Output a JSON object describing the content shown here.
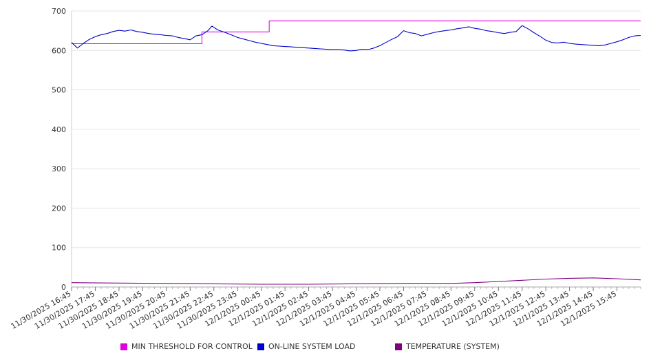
{
  "chart_data": {
    "type": "line",
    "title": "",
    "xlabel": "",
    "ylabel": "",
    "ylim": [
      0,
      700
    ],
    "yticks": [
      0,
      100,
      200,
      300,
      400,
      500,
      600,
      700
    ],
    "grid": true,
    "legend_position": "bottom",
    "x_tick_labels": [
      "11/30/2025 16:45",
      "11/30/2025 17:45",
      "11/30/2025 18:45",
      "11/30/2025 19:45",
      "11/30/2025 20:45",
      "11/30/2025 21:45",
      "11/30/2025 22:45",
      "11/30/2025 23:45",
      "12/1/2025 00:45",
      "12/1/2025 01:45",
      "12/1/2025 02:45",
      "12/1/2025 03:45",
      "12/1/2025 04:45",
      "12/1/2025 05:45",
      "12/1/2025 06:45",
      "12/1/2025 07:45",
      "12/1/2025 08:45",
      "12/1/2025 09:45",
      "12/1/2025 10:45",
      "12/1/2025 11:45",
      "12/1/2025 12:45",
      "12/1/2025 13:45",
      "12/1/2025 14:45",
      "12/1/2025 15:45"
    ],
    "x_range": [
      "11/30/2025 16:45",
      "12/1/2025 16:45"
    ],
    "series": [
      {
        "name": "MIN THRESHOLD FOR CONTROL",
        "color": "#e000e0",
        "step": true,
        "points": [
          [
            "11/30/2025 16:45",
            617
          ],
          [
            "11/30/2025 22:15",
            617
          ],
          [
            "11/30/2025 22:15",
            647
          ],
          [
            "12/1/2025 01:05",
            647
          ],
          [
            "12/1/2025 01:05",
            675
          ],
          [
            "12/1/2025 16:45",
            675
          ]
        ]
      },
      {
        "name": "ON-LINE SYSTEM LOAD",
        "color": "#0000cc",
        "step": false,
        "points": [
          [
            "11/30/2025 16:45",
            620
          ],
          [
            "11/30/2025 17:00",
            606
          ],
          [
            "11/30/2025 17:15",
            618
          ],
          [
            "11/30/2025 17:30",
            628
          ],
          [
            "11/30/2025 17:45",
            635
          ],
          [
            "11/30/2025 18:00",
            640
          ],
          [
            "11/30/2025 18:15",
            643
          ],
          [
            "11/30/2025 18:30",
            648
          ],
          [
            "11/30/2025 18:45",
            651
          ],
          [
            "11/30/2025 19:00",
            649
          ],
          [
            "11/30/2025 19:15",
            652
          ],
          [
            "11/30/2025 19:30",
            648
          ],
          [
            "11/30/2025 19:45",
            646
          ],
          [
            "11/30/2025 20:00",
            643
          ],
          [
            "11/30/2025 20:15",
            641
          ],
          [
            "11/30/2025 20:30",
            640
          ],
          [
            "11/30/2025 20:45",
            638
          ],
          [
            "11/30/2025 21:00",
            637
          ],
          [
            "11/30/2025 21:15",
            633
          ],
          [
            "11/30/2025 21:30",
            630
          ],
          [
            "11/30/2025 21:45",
            627
          ],
          [
            "11/30/2025 22:00",
            637
          ],
          [
            "11/30/2025 22:15",
            640
          ],
          [
            "11/30/2025 22:30",
            650
          ],
          [
            "11/30/2025 22:40",
            662
          ],
          [
            "11/30/2025 22:55",
            652
          ],
          [
            "11/30/2025 23:15",
            645
          ],
          [
            "11/30/2025 23:30",
            639
          ],
          [
            "11/30/2025 23:45",
            633
          ],
          [
            "12/1/2025 00:00",
            629
          ],
          [
            "12/1/2025 00:15",
            625
          ],
          [
            "12/1/2025 00:30",
            621
          ],
          [
            "12/1/2025 00:45",
            618
          ],
          [
            "12/1/2025 01:00",
            615
          ],
          [
            "12/1/2025 01:15",
            612
          ],
          [
            "12/1/2025 01:30",
            611
          ],
          [
            "12/1/2025 01:45",
            610
          ],
          [
            "12/1/2025 02:00",
            609
          ],
          [
            "12/1/2025 02:15",
            608
          ],
          [
            "12/1/2025 02:30",
            607
          ],
          [
            "12/1/2025 02:45",
            606
          ],
          [
            "12/1/2025 03:00",
            605
          ],
          [
            "12/1/2025 03:15",
            604
          ],
          [
            "12/1/2025 03:30",
            603
          ],
          [
            "12/1/2025 03:45",
            602
          ],
          [
            "12/1/2025 04:00",
            602
          ],
          [
            "12/1/2025 04:15",
            601
          ],
          [
            "12/1/2025 04:30",
            599
          ],
          [
            "12/1/2025 04:45",
            600
          ],
          [
            "12/1/2025 05:00",
            603
          ],
          [
            "12/1/2025 05:15",
            602
          ],
          [
            "12/1/2025 05:30",
            606
          ],
          [
            "12/1/2025 05:45",
            612
          ],
          [
            "12/1/2025 06:00",
            620
          ],
          [
            "12/1/2025 06:15",
            628
          ],
          [
            "12/1/2025 06:30",
            635
          ],
          [
            "12/1/2025 06:45",
            650
          ],
          [
            "12/1/2025 07:00",
            645
          ],
          [
            "12/1/2025 07:15",
            643
          ],
          [
            "12/1/2025 07:30",
            637
          ],
          [
            "12/1/2025 07:45",
            641
          ],
          [
            "12/1/2025 08:00",
            645
          ],
          [
            "12/1/2025 08:15",
            648
          ],
          [
            "12/1/2025 08:30",
            650
          ],
          [
            "12/1/2025 08:45",
            652
          ],
          [
            "12/1/2025 09:00",
            655
          ],
          [
            "12/1/2025 09:15",
            657
          ],
          [
            "12/1/2025 09:30",
            660
          ],
          [
            "12/1/2025 09:45",
            656
          ],
          [
            "12/1/2025 10:00",
            654
          ],
          [
            "12/1/2025 10:15",
            650
          ],
          [
            "12/1/2025 10:30",
            648
          ],
          [
            "12/1/2025 10:45",
            645
          ],
          [
            "12/1/2025 11:00",
            643
          ],
          [
            "12/1/2025 11:15",
            646
          ],
          [
            "12/1/2025 11:30",
            648
          ],
          [
            "12/1/2025 11:45",
            663
          ],
          [
            "12/1/2025 12:00",
            655
          ],
          [
            "12/1/2025 12:15",
            645
          ],
          [
            "12/1/2025 12:30",
            636
          ],
          [
            "12/1/2025 12:45",
            626
          ],
          [
            "12/1/2025 13:00",
            620
          ],
          [
            "12/1/2025 13:15",
            619
          ],
          [
            "12/1/2025 13:30",
            621
          ],
          [
            "12/1/2025 13:45",
            618
          ],
          [
            "12/1/2025 14:00",
            616
          ],
          [
            "12/1/2025 14:15",
            615
          ],
          [
            "12/1/2025 14:30",
            614
          ],
          [
            "12/1/2025 14:45",
            613
          ],
          [
            "12/1/2025 15:00",
            612
          ],
          [
            "12/1/2025 15:15",
            614
          ],
          [
            "12/1/2025 15:30",
            618
          ],
          [
            "12/1/2025 15:45",
            622
          ],
          [
            "12/1/2025 16:00",
            627
          ],
          [
            "12/1/2025 16:15",
            633
          ],
          [
            "12/1/2025 16:30",
            637
          ],
          [
            "12/1/2025 16:45",
            638
          ]
        ]
      },
      {
        "name": "TEMPERATURE (SYSTEM)",
        "color": "#800080",
        "step": false,
        "points": [
          [
            "11/30/2025 16:45",
            11
          ],
          [
            "11/30/2025 18:45",
            10
          ],
          [
            "11/30/2025 20:45",
            9
          ],
          [
            "11/30/2025 22:45",
            8
          ],
          [
            "12/1/2025 00:45",
            7
          ],
          [
            "12/1/2025 02:45",
            7
          ],
          [
            "12/1/2025 04:45",
            8
          ],
          [
            "12/1/2025 06:45",
            9
          ],
          [
            "12/1/2025 08:45",
            9
          ],
          [
            "12/1/2025 09:45",
            11
          ],
          [
            "12/1/2025 10:45",
            14
          ],
          [
            "12/1/2025 11:45",
            17
          ],
          [
            "12/1/2025 12:45",
            20
          ],
          [
            "12/1/2025 13:45",
            22
          ],
          [
            "12/1/2025 14:45",
            23
          ],
          [
            "12/1/2025 15:45",
            21
          ],
          [
            "12/1/2025 16:45",
            18
          ]
        ]
      }
    ]
  }
}
